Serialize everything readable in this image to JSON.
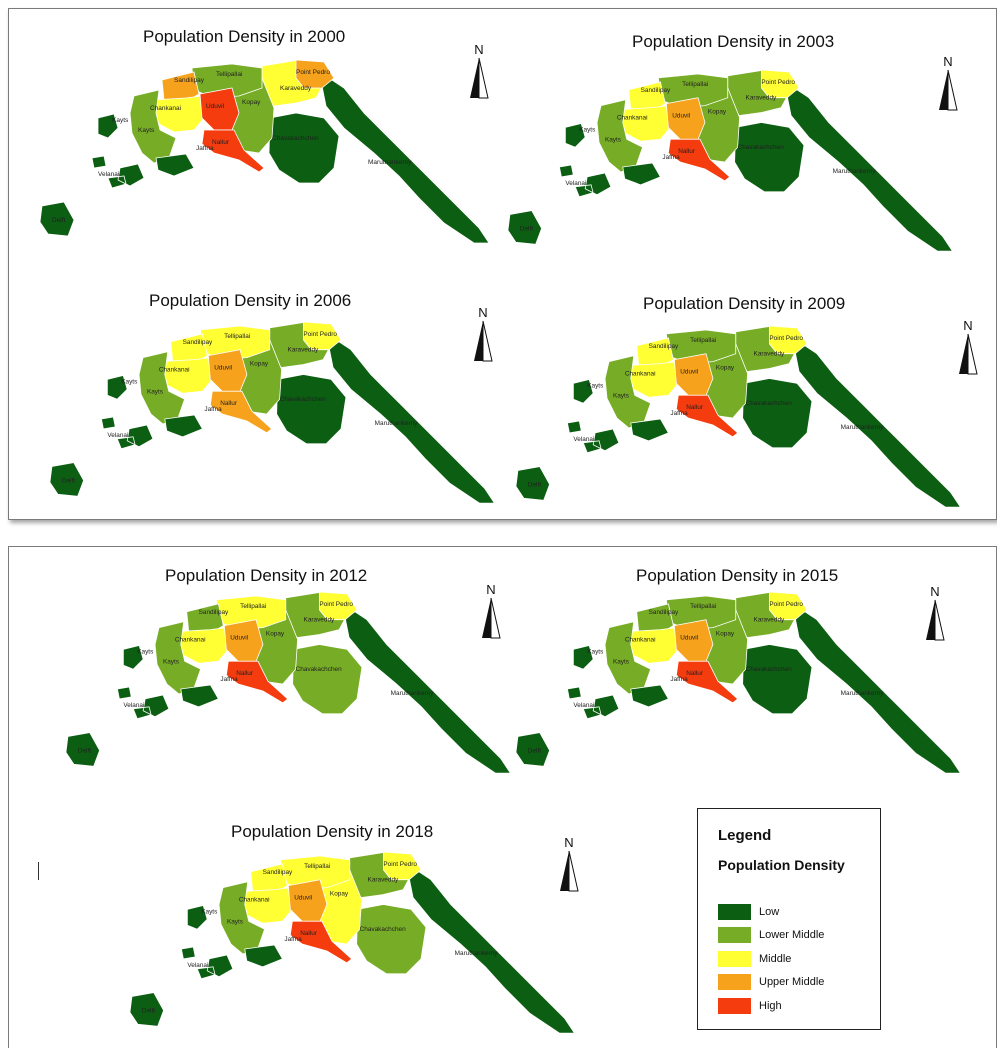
{
  "maps": [
    {
      "id": "m2000",
      "title": "Population Density in 2000",
      "colors": {
        "west": "lower_middle",
        "sandilipay": "upper_middle",
        "chankanai": "middle",
        "tellipallai": "lower_middle",
        "uduvil": "high",
        "kopay": "lower_middle",
        "nallur": "high",
        "karaveddy": "middle",
        "pointpedro": "upper_middle",
        "chavakachchen": "low",
        "east": "low",
        "islands": "low"
      }
    },
    {
      "id": "m2003",
      "title": "Population Density in 2003",
      "colors": {
        "west": "lower_middle",
        "sandilipay": "middle",
        "chankanai": "middle",
        "tellipallai": "lower_middle",
        "uduvil": "upper_middle",
        "kopay": "lower_middle",
        "nallur": "high",
        "karaveddy": "lower_middle",
        "pointpedro": "middle",
        "chavakachchen": "low",
        "east": "low",
        "islands": "low"
      }
    },
    {
      "id": "m2006",
      "title": "Population Density in 2006",
      "colors": {
        "west": "lower_middle",
        "sandilipay": "middle",
        "chankanai": "middle",
        "tellipallai": "middle",
        "uduvil": "upper_middle",
        "kopay": "lower_middle",
        "nallur": "upper_middle",
        "karaveddy": "lower_middle",
        "pointpedro": "middle",
        "chavakachchen": "low",
        "east": "low",
        "islands": "low"
      }
    },
    {
      "id": "m2009",
      "title": "Population Density in 2009",
      "colors": {
        "west": "lower_middle",
        "sandilipay": "middle",
        "chankanai": "middle",
        "tellipallai": "lower_middle",
        "uduvil": "upper_middle",
        "kopay": "lower_middle",
        "nallur": "high",
        "karaveddy": "lower_middle",
        "pointpedro": "middle",
        "chavakachchen": "low",
        "east": "low",
        "islands": "low"
      }
    },
    {
      "id": "m2012",
      "title": "Population Density in 2012",
      "colors": {
        "west": "lower_middle",
        "sandilipay": "lower_middle",
        "chankanai": "middle",
        "tellipallai": "middle",
        "uduvil": "upper_middle",
        "kopay": "lower_middle",
        "nallur": "high",
        "karaveddy": "lower_middle",
        "pointpedro": "middle",
        "chavakachchen": "lower_middle",
        "east": "low",
        "islands": "low"
      }
    },
    {
      "id": "m2015",
      "title": "Population Density in 2015",
      "colors": {
        "west": "lower_middle",
        "sandilipay": "lower_middle",
        "chankanai": "middle",
        "tellipallai": "lower_middle",
        "uduvil": "upper_middle",
        "kopay": "lower_middle",
        "nallur": "high",
        "karaveddy": "lower_middle",
        "pointpedro": "middle",
        "chavakachchen": "low",
        "east": "low",
        "islands": "low"
      }
    },
    {
      "id": "m2018",
      "title": "Population Density in 2018",
      "colors": {
        "west": "lower_middle",
        "sandilipay": "middle",
        "chankanai": "middle",
        "tellipallai": "middle",
        "uduvil": "upper_middle",
        "kopay": "middle",
        "nallur": "high",
        "karaveddy": "lower_middle",
        "pointpedro": "middle",
        "chavakachchen": "lower_middle",
        "east": "low",
        "islands": "low"
      }
    }
  ],
  "place_labels": {
    "sandilipay": "Sandilipay",
    "tellipallai": "Tellipallai",
    "point_pedro": "Point Pedro",
    "karaveddy": "Karaveddy",
    "chankanai": "Chankanai",
    "uduvil": "Uduvil",
    "kopay": "Kopay",
    "kayts": "Kayts",
    "jaffna": "Jaffna",
    "nallur": "Nallur",
    "chavakachchen": "Chavakachchen",
    "maruthankerny": "Maruthankerny",
    "velanai": "Velanai",
    "delft": "Delft"
  },
  "north_label": "N",
  "legend": {
    "title": "Legend",
    "subtitle": "Population Density",
    "items": [
      {
        "key": "low",
        "label": "Low",
        "color": "#0b5e12"
      },
      {
        "key": "lower_middle",
        "label": "Lower Middle",
        "color": "#77ad26"
      },
      {
        "key": "middle",
        "label": "Middle",
        "color": "#ffff33"
      },
      {
        "key": "upper_middle",
        "label": "Upper Middle",
        "color": "#f7a21c"
      },
      {
        "key": "high",
        "label": "High",
        "color": "#f43c0f"
      }
    ]
  }
}
